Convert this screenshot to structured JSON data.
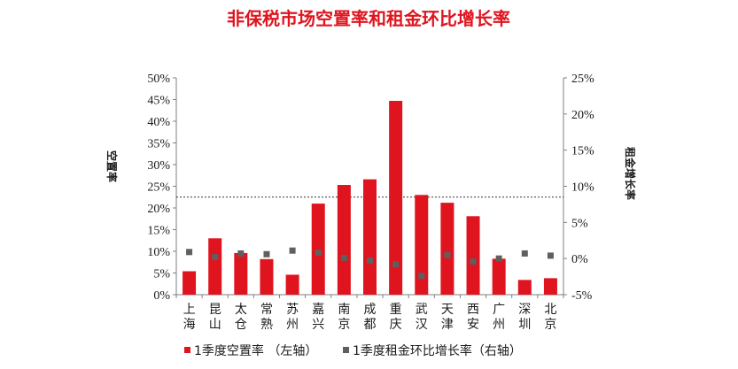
{
  "chart_data": {
    "type": "bar",
    "title": "非保税市场空置率和租金环比增长率",
    "categories": [
      "上海",
      "昆山",
      "太仓",
      "常熟",
      "苏州",
      "嘉兴",
      "南京",
      "成都",
      "重庆",
      "武汉",
      "天津",
      "西安",
      "广州",
      "深圳",
      "北京"
    ],
    "ylabel_left": "空置率",
    "ylabel_right": "租金增长率",
    "yticks_left": [
      "0%",
      "5%",
      "10%",
      "15%",
      "20%",
      "25%",
      "30%",
      "35%",
      "40%",
      "45%",
      "50%"
    ],
    "yticks_right": [
      "-5%",
      "0%",
      "5%",
      "10%",
      "15%",
      "20%",
      "25%"
    ],
    "ylim_left": [
      0,
      50
    ],
    "ylim_right": [
      -5,
      25
    ],
    "reference_line_left": 22.5,
    "series": [
      {
        "name": "1季度空置率 （左轴）",
        "type": "bar",
        "axis": "left",
        "color": "#e0141e",
        "values": [
          5.4,
          13.0,
          9.6,
          8.2,
          4.6,
          21.0,
          25.3,
          26.6,
          44.7,
          23.0,
          21.2,
          18.1,
          8.3,
          3.4,
          3.8
        ]
      },
      {
        "name": "1季度租金环比增长率（右轴）",
        "type": "scatter",
        "axis": "right",
        "color": "#5f5f5f",
        "values": [
          0.9,
          0.2,
          0.7,
          0.6,
          1.1,
          0.8,
          0.1,
          -0.3,
          -0.8,
          -2.4,
          0.5,
          -0.4,
          0.0,
          0.7,
          0.4
        ]
      }
    ],
    "grid": false,
    "legend_position": "bottom"
  }
}
